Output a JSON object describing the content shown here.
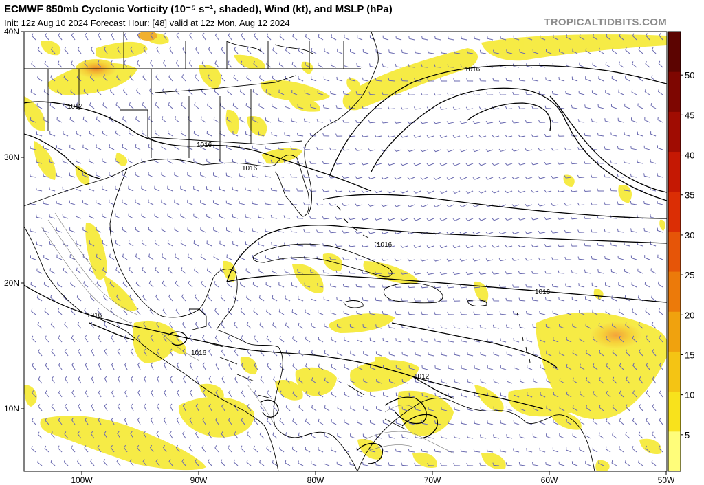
{
  "header": {
    "title": "ECMWF 850mb Cyclonic Vorticity (10⁻⁵ s⁻¹, shaded), Wind (kt), and MSLP (hPa)",
    "subtitle": "Init: 12z Aug 10 2024   Forecast Hour: [48]   valid at 12z Mon, Aug 12 2024",
    "brand": "TROPICALTIDBITS.COM"
  },
  "map": {
    "lat_labels": [
      "40N",
      "30N",
      "20N",
      "10N"
    ],
    "lon_labels": [
      "100W",
      "90W",
      "80W",
      "70W",
      "60W",
      "50W"
    ],
    "isobar_labels": [
      "1016",
      "1012",
      "1016",
      "1016",
      "1016",
      "1016",
      "1016",
      "1016",
      "1012"
    ]
  },
  "colorbar": {
    "ticks": [
      "50",
      "45",
      "40",
      "35",
      "30",
      "25",
      "20",
      "15",
      "10",
      "5"
    ],
    "colors": [
      "#fffd7a",
      "#f8e21c",
      "#f4c414",
      "#f0a20e",
      "#ec7a0a",
      "#e65508",
      "#db2e05",
      "#c51803",
      "#a00c02",
      "#7e0601",
      "#5c0401"
    ]
  }
}
